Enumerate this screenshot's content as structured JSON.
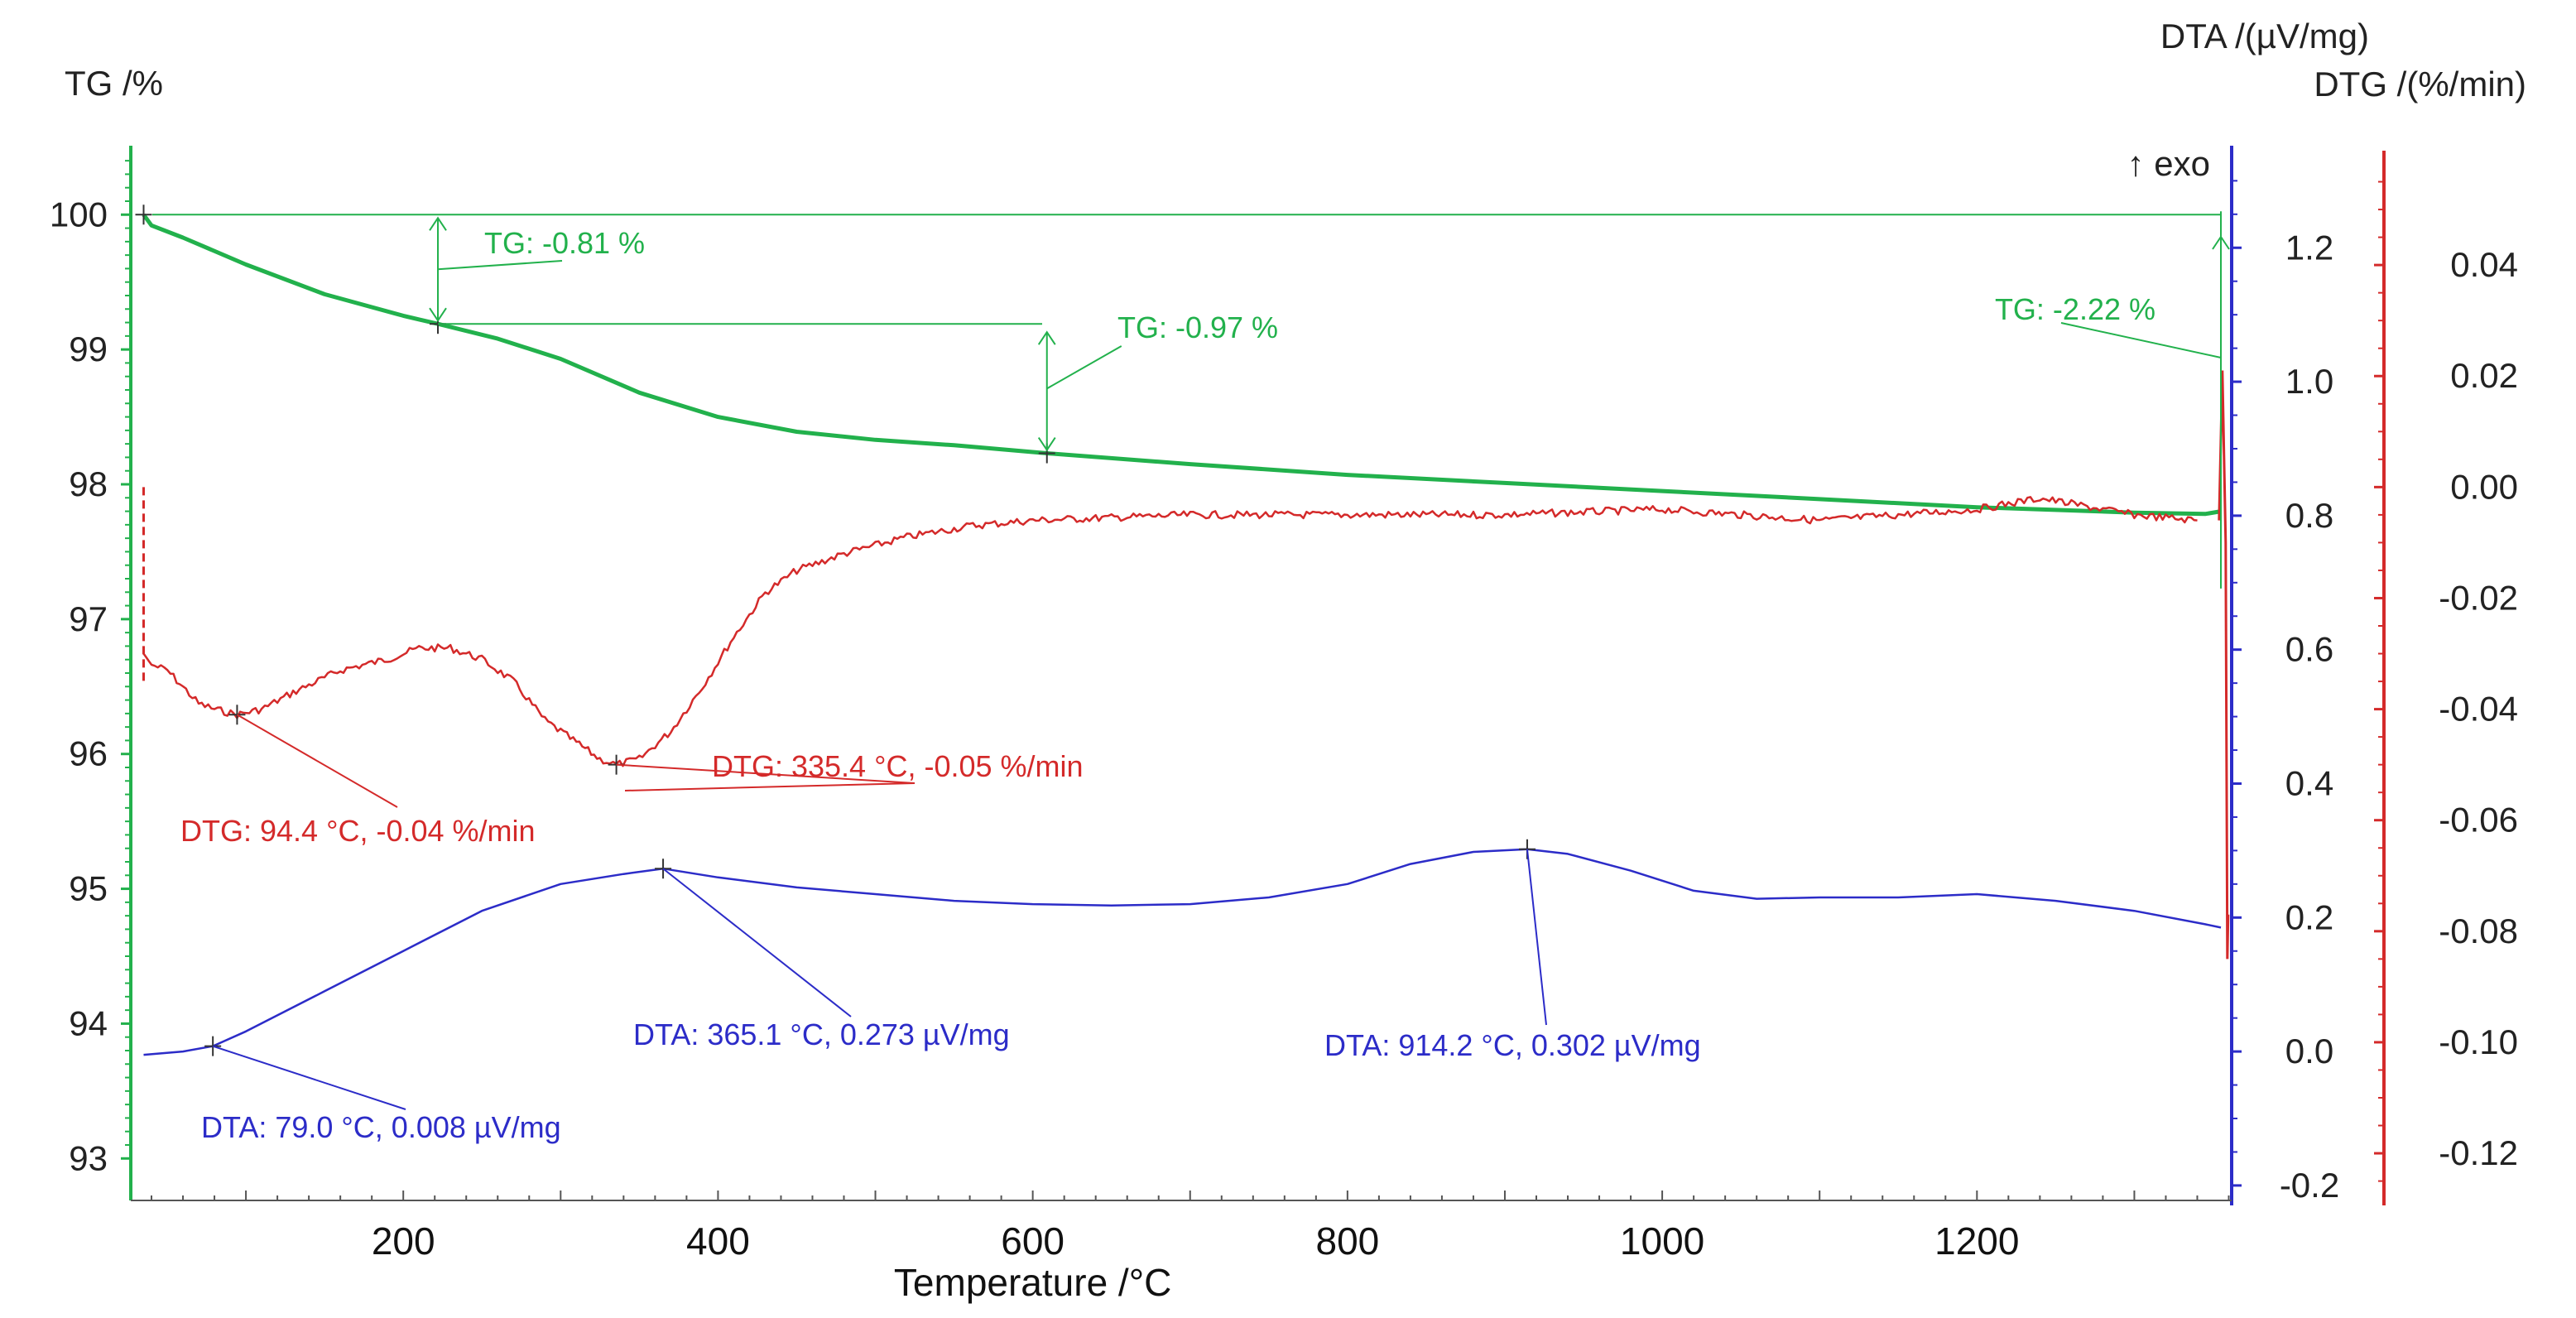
{
  "chart_data": {
    "type": "line",
    "title": "",
    "xlabel": "Temperature /°C",
    "xlim": [
      30,
      1365
    ],
    "x_ticks": [
      200,
      400,
      600,
      800,
      1000,
      1200
    ],
    "x_tick_labels": [
      "200",
      "400",
      "600",
      "800",
      "1000",
      "1200"
    ],
    "axes": {
      "tg": {
        "label": "TG /%",
        "color": "#22b14c",
        "side": "left",
        "lim": [
          92.75,
          100.45
        ],
        "ticks": [
          93,
          94,
          95,
          96,
          97,
          98,
          99,
          100
        ],
        "tick_labels": [
          "93",
          "94",
          "95",
          "96",
          "97",
          "98",
          "99",
          "100"
        ]
      },
      "dta": {
        "label": "DTA /(µV/mg)",
        "color": "#2c2cc8",
        "side": "right",
        "lim": [
          -0.21,
          1.34
        ],
        "ticks": [
          -0.2,
          0.0,
          0.2,
          0.4,
          0.6,
          0.8,
          1.0,
          1.2
        ],
        "tick_labels": [
          "-0.2",
          "0.0",
          "0.2",
          "0.4",
          "0.6",
          "0.8",
          "1.0",
          "1.2"
        ],
        "note": "↑ exo"
      },
      "dtg": {
        "label": "DTG /(%/min)",
        "color": "#d42a2a",
        "side": "right",
        "lim": [
          -0.127,
          0.06
        ],
        "ticks": [
          -0.12,
          -0.1,
          -0.08,
          -0.06,
          -0.04,
          -0.02,
          0.0,
          0.02,
          0.04
        ],
        "tick_labels": [
          "-0.12",
          "-0.10",
          "-0.08",
          "-0.06",
          "-0.04",
          "-0.02",
          "0.00",
          "0.02",
          "0.04"
        ]
      }
    },
    "series": [
      {
        "name": "TG",
        "axis": "tg",
        "color": "#22b14c",
        "points": [
          [
            35,
            100.0
          ],
          [
            40,
            99.92
          ],
          [
            60,
            99.83
          ],
          [
            100,
            99.63
          ],
          [
            150,
            99.41
          ],
          [
            200,
            99.25
          ],
          [
            222,
            99.19
          ],
          [
            260,
            99.08
          ],
          [
            300,
            98.93
          ],
          [
            350,
            98.68
          ],
          [
            400,
            98.5
          ],
          [
            450,
            98.39
          ],
          [
            500,
            98.33
          ],
          [
            550,
            98.29
          ],
          [
            609,
            98.23
          ],
          [
            700,
            98.15
          ],
          [
            800,
            98.07
          ],
          [
            900,
            98.01
          ],
          [
            1000,
            97.95
          ],
          [
            1100,
            97.89
          ],
          [
            1200,
            97.83
          ],
          [
            1300,
            97.79
          ],
          [
            1345,
            97.78
          ],
          [
            1355,
            97.8
          ]
        ]
      },
      {
        "name": "DTG",
        "axis": "dtg",
        "color": "#d42a2a",
        "points": [
          [
            35,
            -0.03
          ],
          [
            40,
            -0.032
          ],
          [
            50,
            -0.033
          ],
          [
            60,
            -0.036
          ],
          [
            70,
            -0.039
          ],
          [
            80,
            -0.04
          ],
          [
            94.4,
            -0.041
          ],
          [
            110,
            -0.04
          ],
          [
            130,
            -0.037
          ],
          [
            160,
            -0.033
          ],
          [
            190,
            -0.031
          ],
          [
            210,
            -0.029
          ],
          [
            230,
            -0.029
          ],
          [
            250,
            -0.031
          ],
          [
            270,
            -0.035
          ],
          [
            290,
            -0.042
          ],
          [
            310,
            -0.046
          ],
          [
            325,
            -0.049
          ],
          [
            335.4,
            -0.05
          ],
          [
            350,
            -0.049
          ],
          [
            370,
            -0.044
          ],
          [
            390,
            -0.036
          ],
          [
            410,
            -0.027
          ],
          [
            430,
            -0.019
          ],
          [
            450,
            -0.015
          ],
          [
            480,
            -0.012
          ],
          [
            520,
            -0.009
          ],
          [
            560,
            -0.007
          ],
          [
            600,
            -0.006
          ],
          [
            700,
            -0.005
          ],
          [
            800,
            -0.005
          ],
          [
            900,
            -0.005
          ],
          [
            1000,
            -0.004
          ],
          [
            1100,
            -0.006
          ],
          [
            1200,
            -0.004
          ],
          [
            1240,
            -0.002
          ],
          [
            1300,
            -0.005
          ],
          [
            1340,
            -0.006
          ]
        ]
      },
      {
        "name": "DTA",
        "axis": "dta",
        "color": "#2c2cc8",
        "points": [
          [
            35,
            -0.005
          ],
          [
            60,
            0.0
          ],
          [
            79,
            0.008
          ],
          [
            100,
            0.03
          ],
          [
            150,
            0.09
          ],
          [
            200,
            0.15
          ],
          [
            250,
            0.21
          ],
          [
            300,
            0.25
          ],
          [
            340,
            0.265
          ],
          [
            365.1,
            0.273
          ],
          [
            400,
            0.26
          ],
          [
            450,
            0.245
          ],
          [
            500,
            0.235
          ],
          [
            550,
            0.225
          ],
          [
            600,
            0.22
          ],
          [
            650,
            0.218
          ],
          [
            700,
            0.22
          ],
          [
            750,
            0.23
          ],
          [
            800,
            0.25
          ],
          [
            840,
            0.28
          ],
          [
            880,
            0.298
          ],
          [
            914.2,
            0.302
          ],
          [
            940,
            0.295
          ],
          [
            980,
            0.27
          ],
          [
            1020,
            0.24
          ],
          [
            1060,
            0.228
          ],
          [
            1100,
            0.23
          ],
          [
            1150,
            0.23
          ],
          [
            1200,
            0.235
          ],
          [
            1250,
            0.225
          ],
          [
            1300,
            0.21
          ],
          [
            1345,
            0.19
          ],
          [
            1355,
            0.185
          ]
        ]
      }
    ],
    "markers": [
      {
        "series": "TG",
        "x": 35,
        "y": 100.0
      },
      {
        "series": "TG",
        "x": 222,
        "y": 99.19
      },
      {
        "series": "TG",
        "x": 609,
        "y": 98.23
      },
      {
        "series": "DTG",
        "x": 94.4,
        "y": -0.041
      },
      {
        "series": "DTG",
        "x": 335.4,
        "y": -0.05
      },
      {
        "series": "DTA",
        "x": 79.0,
        "y": 0.008
      },
      {
        "series": "DTA",
        "x": 365.1,
        "y": 0.273
      },
      {
        "series": "DTA",
        "x": 914.2,
        "y": 0.302
      }
    ],
    "tg_steps": [
      {
        "label": "TG: -0.81 %",
        "x": 222,
        "from": 100.0,
        "to": 99.19
      },
      {
        "label": "TG: -0.97 %",
        "x": 609,
        "from": 99.19,
        "to": 98.23
      },
      {
        "label": "TG: -2.22 %",
        "x": 1355,
        "from": 97.78,
        "to": 100.0
      }
    ],
    "annotations": [
      {
        "text": "TG: -0.81 %",
        "series": "TG"
      },
      {
        "text": "TG: -0.97 %",
        "series": "TG"
      },
      {
        "text": "TG: -2.22 %",
        "series": "TG"
      },
      {
        "text": "DTG: 94.4 °C, -0.04 %/min",
        "series": "DTG"
      },
      {
        "text": "DTG: 335.4 °C, -0.05 %/min",
        "series": "DTG"
      },
      {
        "text": "DTA: 79.0 °C, 0.008 µV/mg",
        "series": "DTA"
      },
      {
        "text": "DTA: 365.1 °C, 0.273 µV/mg",
        "series": "DTA"
      },
      {
        "text": "DTA: 914.2 °C, 0.302 µV/mg",
        "series": "DTA"
      }
    ],
    "legend": "none",
    "grid": false
  }
}
